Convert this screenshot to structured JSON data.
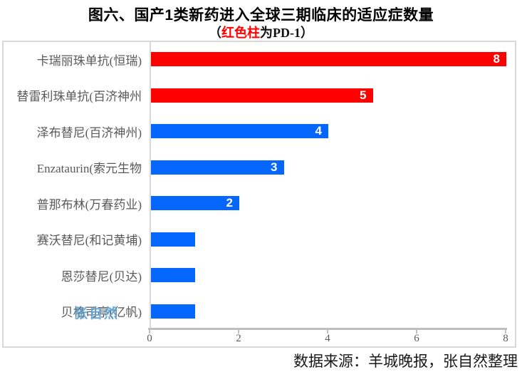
{
  "title": "图六、国产1类新药进入全球三期临床的适应症数量",
  "subtitle": {
    "open": "（",
    "highlight": "红色柱",
    "rest": "为PD-1）"
  },
  "source_note": "数据来源：羊城晚报，张自然整理",
  "watermark": "张自然",
  "colors": {
    "pd1_bar": "#FF0000",
    "default_bar": "#0667FE",
    "value_label": "#FFFFFF",
    "category_label": "#595959",
    "tick_label": "#595959",
    "axis_line": "#BFBFBF",
    "frame_border": "#D9D9D9",
    "subtitle_highlight": "#FF0000",
    "watermark": "#56A0D3"
  },
  "chart_data": {
    "type": "bar",
    "orientation": "horizontal",
    "title": "图六、国产1类新药进入全球三期临床的适应症数量",
    "subtitle": "（红色柱为PD-1）",
    "xlabel": "",
    "ylabel": "",
    "xlim": [
      0,
      8
    ],
    "xticks": [
      0,
      2,
      4,
      6,
      8
    ],
    "grid": false,
    "legend": "none",
    "bars": [
      {
        "label": "卡瑞丽珠单抗(恒瑞)",
        "value": 8,
        "pd1": true,
        "show_value": true
      },
      {
        "label": "替雷利珠单抗(百济神州",
        "value": 5,
        "pd1": true,
        "show_value": true
      },
      {
        "label": "泽布替尼(百济神州)",
        "value": 4,
        "pd1": false,
        "show_value": true
      },
      {
        "label": "Enzataurin(索元生物",
        "value": 3,
        "pd1": false,
        "show_value": true
      },
      {
        "label": "普那布林(万春药业)",
        "value": 2,
        "pd1": false,
        "show_value": true
      },
      {
        "label": "赛沃替尼(和记黄埔)",
        "value": 1,
        "pd1": false,
        "show_value": false
      },
      {
        "label": "恩莎替尼(贝达)",
        "value": 1,
        "pd1": false,
        "show_value": false
      },
      {
        "label": "贝格司亭(亿帆)",
        "value": 1,
        "pd1": false,
        "show_value": false
      }
    ]
  }
}
